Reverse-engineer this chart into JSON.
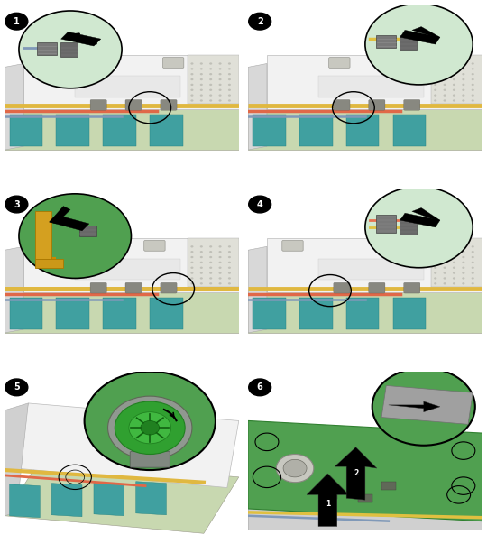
{
  "figsize": [
    5.4,
    6.13
  ],
  "dpi": 100,
  "bg_color": "#ffffff",
  "panel_border": "#333333",
  "panel_bg": "#ffffff",
  "label_bg": "#000000",
  "label_fg": "#ffffff",
  "label_fontsize": 7,
  "panels": [
    {
      "id": 1,
      "zoom_pos": "upper_left",
      "zoom_bg": "#d8ecd8",
      "zoom_border": "#000000",
      "server_bg": "#f0f0f0",
      "pcb_color": "#a8b890",
      "cover_color": "#f5f5f5",
      "cable_colors": [
        "#e8c860",
        "#e87050",
        "#a0b8d0"
      ],
      "memory_color": "#40a0a0",
      "arrow_dir": "left",
      "connector_color": "#707070",
      "circle_pos": "right"
    },
    {
      "id": 2,
      "zoom_pos": "upper_right",
      "zoom_bg": "#d8ecd8",
      "zoom_border": "#000000",
      "server_bg": "#f0f0f0",
      "pcb_color": "#a8b890",
      "cover_color": "#f5f5f5",
      "cable_colors": [
        "#e8c860",
        "#e87050",
        "#a0b8d0"
      ],
      "memory_color": "#40a0a0",
      "arrow_dir": "right",
      "connector_color": "#707070",
      "circle_pos": "center"
    },
    {
      "id": 3,
      "zoom_pos": "upper_left",
      "zoom_bg": "#50a050",
      "zoom_border": "#000000",
      "server_bg": "#f0f0f0",
      "pcb_color": "#a8b890",
      "cover_color": "#f5f5f5",
      "cable_colors": [
        "#e8c860",
        "#e87050"
      ],
      "memory_color": "#40a0a0",
      "arrow_dir": "left",
      "bracket_color": "#d4a020",
      "connector_color": "#707070",
      "circle_pos": "right"
    },
    {
      "id": 4,
      "zoom_pos": "upper_right",
      "zoom_bg": "#d8ecd8",
      "zoom_border": "#000000",
      "server_bg": "#f0f0f0",
      "pcb_color": "#a8b890",
      "cover_color": "#f5f5f5",
      "cable_colors": [
        "#e8c860",
        "#e87050",
        "#a0b8d0"
      ],
      "memory_color": "#40a0a0",
      "arrow_dir": "right",
      "connector_color": "#707070",
      "circle_pos": "left_center"
    },
    {
      "id": 5,
      "zoom_pos": "upper_center",
      "zoom_bg": "#50a050",
      "zoom_border": "#000000",
      "server_bg": "#f0f0f0",
      "pcb_color": "#a8b890",
      "cover_color": "#f5f5f5",
      "cable_colors": [
        "#e8c860",
        "#e87050"
      ],
      "memory_color": "#40a0a0",
      "screw_color": "#30a030",
      "screw_inner": "#208020"
    },
    {
      "id": 6,
      "zoom_pos": "upper_right",
      "zoom_bg": "#50a050",
      "zoom_border": "#000000",
      "backplane_color": "#50a050",
      "rail_color": "#c0c0c0",
      "cable_colors": [
        "#e8c860",
        "#a0b8d0"
      ],
      "arrow_color": "#000000"
    }
  ]
}
